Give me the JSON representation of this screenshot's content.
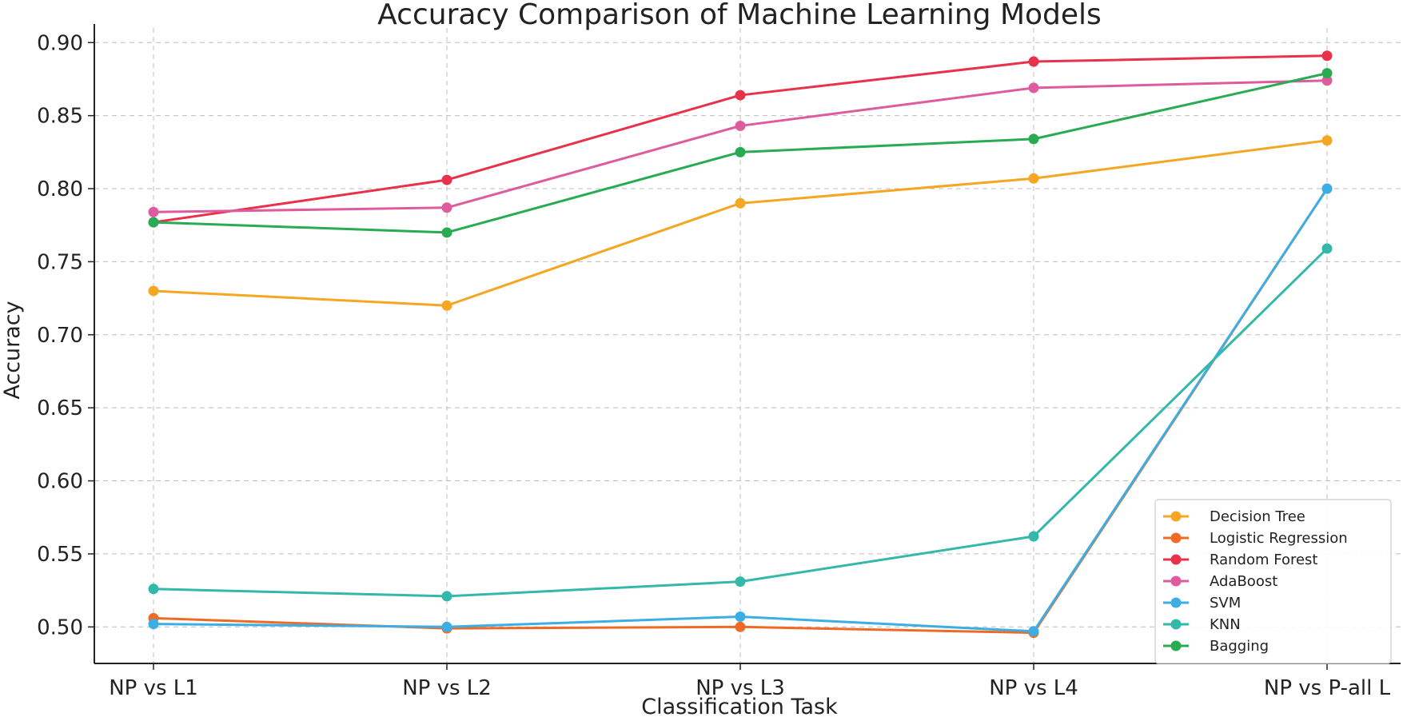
{
  "chart_data": {
    "type": "line",
    "title": "Accuracy Comparison of Machine Learning Models",
    "xlabel": "Classification Task",
    "ylabel": "Accuracy",
    "categories": [
      "NP vs L1",
      "NP vs L2",
      "NP vs L3",
      "NP vs L4",
      "NP vs P-all L"
    ],
    "ylim": [
      0.475,
      0.91
    ],
    "yticks": [
      0.5,
      0.55,
      0.6,
      0.65,
      0.7,
      0.75,
      0.8,
      0.85,
      0.9
    ],
    "ytick_labels": [
      "0.50",
      "0.55",
      "0.60",
      "0.65",
      "0.70",
      "0.75",
      "0.80",
      "0.85",
      "0.90"
    ],
    "grid": true,
    "legend_position": "lower-right",
    "series": [
      {
        "name": "Decision Tree",
        "color": "#f5a623",
        "values": [
          0.73,
          0.72,
          0.79,
          0.807,
          0.833
        ]
      },
      {
        "name": "Logistic Regression",
        "color": "#ef6a25",
        "values": [
          0.506,
          0.499,
          0.5,
          0.496,
          0.8
        ]
      },
      {
        "name": "Random Forest",
        "color": "#e8314b",
        "values": [
          0.777,
          0.806,
          0.864,
          0.887,
          0.891
        ]
      },
      {
        "name": "AdaBoost",
        "color": "#de5b9e",
        "values": [
          0.784,
          0.787,
          0.843,
          0.869,
          0.874
        ]
      },
      {
        "name": "SVM",
        "color": "#3daee3",
        "values": [
          0.502,
          0.5,
          0.507,
          0.497,
          0.8
        ]
      },
      {
        "name": "KNN",
        "color": "#33b8aa",
        "values": [
          0.526,
          0.521,
          0.531,
          0.562,
          0.759
        ]
      },
      {
        "name": "Bagging",
        "color": "#29ab54",
        "values": [
          0.777,
          0.77,
          0.825,
          0.834,
          0.879
        ]
      }
    ]
  }
}
